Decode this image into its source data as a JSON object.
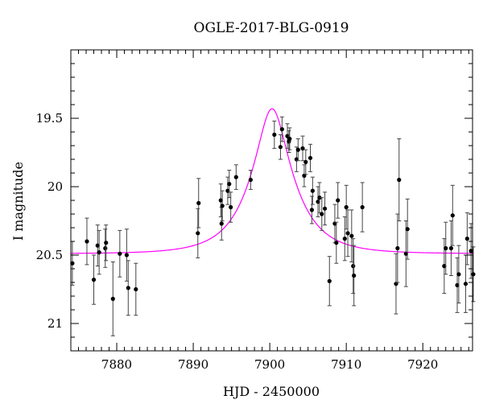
{
  "chart_data": {
    "type": "scatter",
    "title": "OGLE-2017-BLG-0919",
    "xlabel": "HJD - 2450000",
    "ylabel": "I magnitude",
    "xlim": [
      7874,
      7926.5
    ],
    "ylim": [
      21.2,
      19.0
    ],
    "y_inverted": true,
    "xticks": [
      7880,
      7890,
      7900,
      7910,
      7920
    ],
    "yticks": [
      19.5,
      20,
      20.5,
      21
    ],
    "ytick_labels": [
      "19.5",
      "20",
      "20.5",
      "21"
    ],
    "grid": false,
    "colors": {
      "points": "#000000",
      "model": "#ff00ff"
    },
    "model": {
      "name": "",
      "t0": 7900.3,
      "base": 20.49,
      "peak": 19.43,
      "u0": 0.35,
      "tE": 5.3
    },
    "series": [
      {
        "name": "",
        "points": [
          [
            7874.2,
            20.56,
            0.16
          ],
          [
            7876.1,
            20.4,
            0.17
          ],
          [
            7877.0,
            20.68,
            0.18
          ],
          [
            7877.5,
            20.43,
            0.15
          ],
          [
            7877.7,
            20.48,
            0.16
          ],
          [
            7878.5,
            20.45,
            0.14
          ],
          [
            7878.6,
            20.41,
            0.13
          ],
          [
            7879.5,
            20.82,
            0.27
          ],
          [
            7880.4,
            20.49,
            0.17
          ],
          [
            7881.3,
            20.5,
            0.19
          ],
          [
            7881.5,
            20.74,
            0.2
          ],
          [
            7882.5,
            20.75,
            0.19
          ],
          [
            7890.6,
            20.34,
            0.18
          ],
          [
            7890.7,
            20.12,
            0.18
          ],
          [
            7893.6,
            20.1,
            0.12
          ],
          [
            7893.7,
            20.27,
            0.12
          ],
          [
            7893.8,
            20.14,
            0.11
          ],
          [
            7894.5,
            20.03,
            0.1
          ],
          [
            7894.7,
            19.98,
            0.1
          ],
          [
            7894.9,
            20.15,
            0.11
          ],
          [
            7895.6,
            19.93,
            0.09
          ],
          [
            7897.5,
            19.95,
            0.07
          ],
          [
            7900.6,
            19.62,
            0.1
          ],
          [
            7901.4,
            19.71,
            0.09
          ],
          [
            7901.6,
            19.58,
            0.09
          ],
          [
            7902.3,
            19.63,
            0.09
          ],
          [
            7902.5,
            19.67,
            0.08
          ],
          [
            7902.6,
            19.65,
            0.08
          ],
          [
            7903.5,
            19.8,
            0.09
          ],
          [
            7903.7,
            19.73,
            0.08
          ],
          [
            7904.3,
            19.72,
            0.09
          ],
          [
            7904.5,
            19.92,
            0.08
          ],
          [
            7904.7,
            19.82,
            0.09
          ],
          [
            7905.3,
            19.79,
            0.1
          ],
          [
            7905.5,
            20.17,
            0.1
          ],
          [
            7905.6,
            20.03,
            0.1
          ],
          [
            7906.3,
            20.11,
            0.11
          ],
          [
            7906.5,
            20.08,
            0.11
          ],
          [
            7906.8,
            20.2,
            0.12
          ],
          [
            7907.2,
            20.16,
            0.12
          ],
          [
            7907.8,
            20.69,
            0.18
          ],
          [
            7908.5,
            20.27,
            0.14
          ],
          [
            7908.7,
            20.41,
            0.15
          ],
          [
            7908.9,
            20.1,
            0.13
          ],
          [
            7909.8,
            20.38,
            0.16
          ],
          [
            7910.0,
            20.15,
            0.16
          ],
          [
            7910.2,
            20.34,
            0.17
          ],
          [
            7910.7,
            20.36,
            0.19
          ],
          [
            7910.9,
            20.58,
            0.2
          ],
          [
            7911.0,
            20.65,
            0.22
          ],
          [
            7912.1,
            20.15,
            0.18
          ],
          [
            7916.5,
            20.71,
            0.22
          ],
          [
            7916.7,
            20.45,
            0.25
          ],
          [
            7916.9,
            19.95,
            0.3
          ],
          [
            7917.8,
            20.49,
            0.24
          ],
          [
            7918.0,
            20.31,
            0.22
          ],
          [
            7922.8,
            20.58,
            0.2
          ],
          [
            7923.0,
            20.45,
            0.19
          ],
          [
            7923.7,
            20.45,
            0.2
          ],
          [
            7923.9,
            20.21,
            0.22
          ],
          [
            7924.5,
            20.72,
            0.2
          ],
          [
            7924.7,
            20.64,
            0.21
          ],
          [
            7925.6,
            20.71,
            0.21
          ],
          [
            7925.8,
            20.38,
            0.19
          ],
          [
            7926.3,
            20.47,
            0.2
          ],
          [
            7926.6,
            20.64,
            0.2
          ]
        ]
      }
    ]
  }
}
